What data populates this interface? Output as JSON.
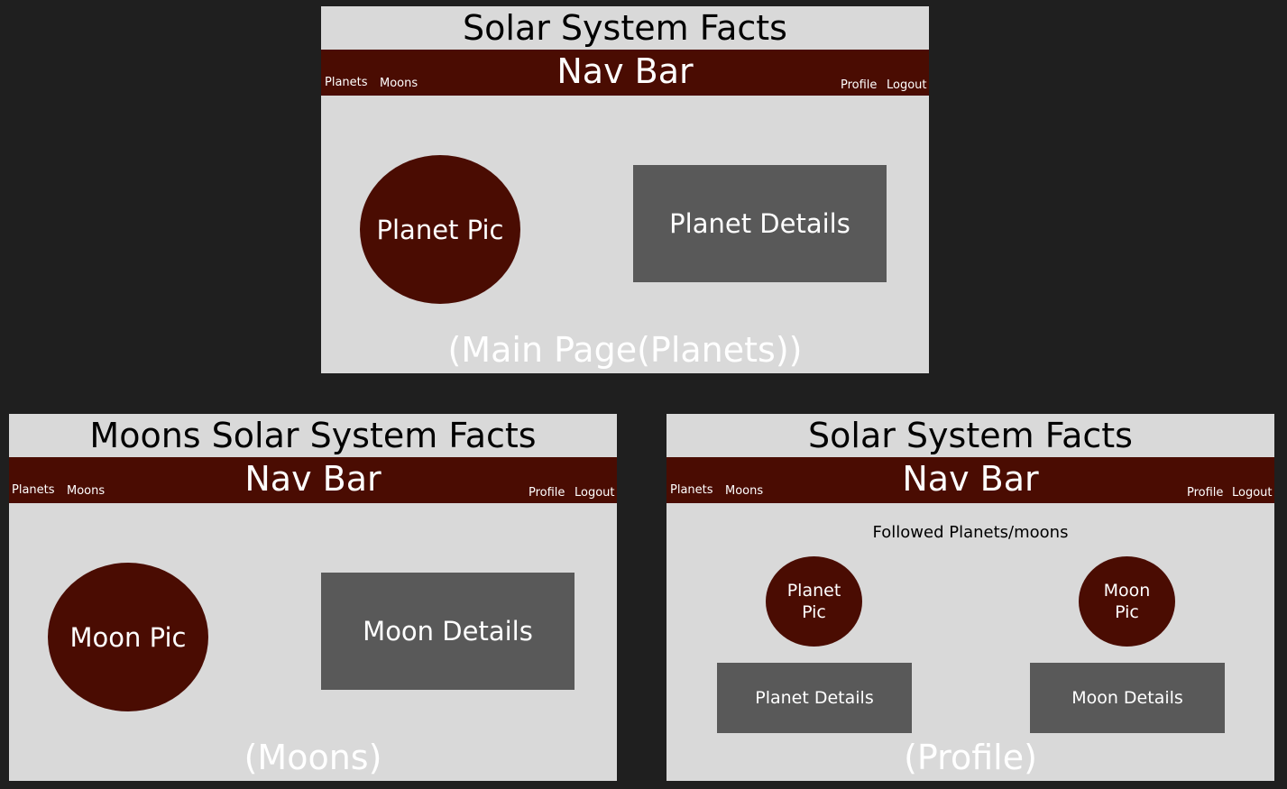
{
  "main_page": {
    "title": "Solar System Facts",
    "nav": {
      "title": "Nav Bar",
      "planets": "Planets",
      "moons": "Moons",
      "profile": "Profile",
      "logout": "Logout"
    },
    "pic_label": "Planet Pic",
    "details_label": "Planet Details",
    "caption": "(Main Page(Planets))"
  },
  "moons_page": {
    "title": "Moons Solar System Facts",
    "nav": {
      "title": "Nav Bar",
      "planets": "Planets",
      "moons": "Moons",
      "profile": "Profile",
      "logout": "Logout"
    },
    "pic_label": "Moon Pic",
    "details_label": "Moon Details",
    "caption": "(Moons)"
  },
  "profile_page": {
    "title": "Solar System Facts",
    "nav": {
      "title": "Nav Bar",
      "planets": "Planets",
      "moons": "Moons",
      "profile": "Profile",
      "logout": "Logout"
    },
    "followed_label": "Followed Planets/moons",
    "planet_pic_line1": "Planet",
    "planet_pic_line2": "Pic",
    "moon_pic_line1": "Moon",
    "moon_pic_line2": "Pic",
    "planet_details_label": "Planet Details",
    "moon_details_label": "Moon Details",
    "caption": "(Profile)"
  },
  "colors": {
    "background": "#1f1f1f",
    "frame": "#d9d9d9",
    "accent": "#4a0c02",
    "box": "#595959"
  }
}
